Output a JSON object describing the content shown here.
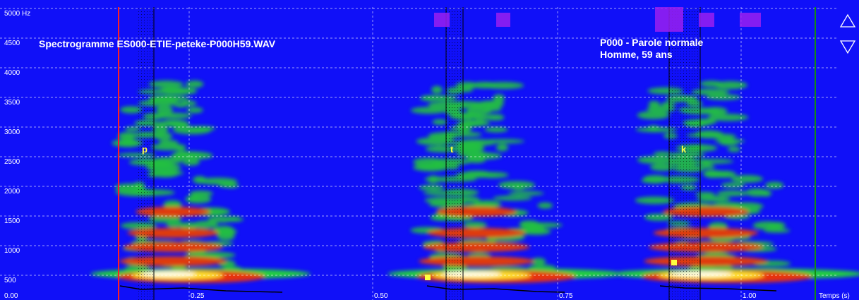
{
  "title": "Spectrogramme ES000-ETIE-peteke-P000H59.WAV",
  "speaker": {
    "line1": "P000 -  Parole normale",
    "line2": "Homme, 59 ans"
  },
  "y_axis": {
    "labels": [
      "5000 Hz",
      "4500",
      "4000",
      "3500",
      "3000",
      "2500",
      "2000",
      "1500",
      "1000",
      "500"
    ]
  },
  "x_axis": {
    "labels": [
      "0.00",
      "0.25",
      "0.50",
      "0.75",
      "1.00"
    ],
    "title": "Temps (s)"
  },
  "phonemes": [
    "p",
    "t",
    "k"
  ]
}
